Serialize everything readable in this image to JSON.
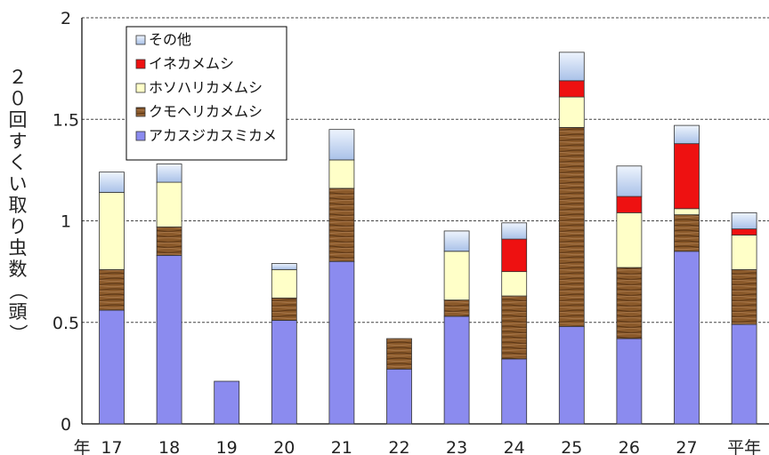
{
  "chart_data": {
    "type": "bar",
    "stacked": true,
    "ylabel": "２０回すくい取り虫数（頭）",
    "xprefix": "年",
    "categories": [
      "17",
      "18",
      "19",
      "20",
      "21",
      "22",
      "23",
      "24",
      "25",
      "26",
      "27",
      "平年"
    ],
    "ylim": [
      0,
      2
    ],
    "yticks": [
      0,
      0.5,
      1,
      1.5,
      2
    ],
    "ytick_labels": [
      "0",
      "0.5",
      "1",
      "1.5",
      "2"
    ],
    "grid": true,
    "legend_position": "top-left",
    "series": [
      {
        "name": "アカスジカスミカメ",
        "color": "#8b8bef",
        "pattern": "solid",
        "values": [
          0.56,
          0.83,
          0.21,
          0.51,
          0.8,
          0.27,
          0.53,
          0.32,
          0.48,
          0.42,
          0.85,
          0.49
        ]
      },
      {
        "name": "クモヘリカメムシ",
        "color": "#8b5a2b",
        "pattern": "wood",
        "values": [
          0.2,
          0.14,
          0,
          0.11,
          0.36,
          0.15,
          0.08,
          0.31,
          0.98,
          0.35,
          0.18,
          0.27
        ]
      },
      {
        "name": "ホソハリカメムシ",
        "color": "#ffffc8",
        "pattern": "solid",
        "values": [
          0.38,
          0.22,
          0,
          0.14,
          0.14,
          0,
          0.24,
          0.12,
          0.15,
          0.27,
          0.03,
          0.17
        ]
      },
      {
        "name": "イネカメムシ",
        "color": "#ee1111",
        "pattern": "solid",
        "values": [
          0,
          0,
          0,
          0,
          0,
          0,
          0,
          0.16,
          0.08,
          0.08,
          0.32,
          0.03
        ]
      },
      {
        "name": "その他",
        "color": "#c6d8f4",
        "pattern": "gradient",
        "values": [
          0.1,
          0.09,
          0,
          0.03,
          0.15,
          0,
          0.1,
          0.08,
          0.14,
          0.15,
          0.09,
          0.08
        ]
      }
    ]
  }
}
